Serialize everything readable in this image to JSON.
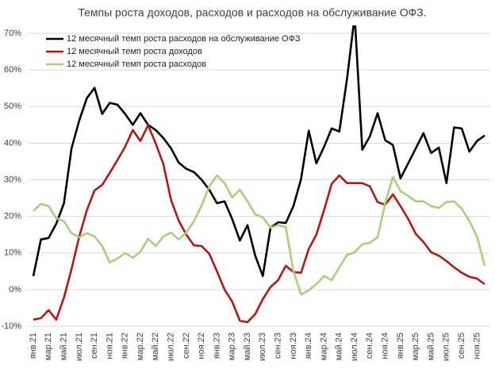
{
  "chart_data": {
    "type": "line",
    "title": "Темпы роста доходов, расходов и расходов на обслуживание ОФЗ.",
    "categories": [
      "янв.21",
      null,
      "мар.21",
      null,
      "май.21",
      null,
      "июл.21",
      null,
      "сен.21",
      null,
      "ноя.21",
      null,
      "янв.22",
      null,
      "мар.22",
      null,
      "май.22",
      null,
      "июл.22",
      null,
      "сен.22",
      null,
      "ноя.22",
      null,
      "янв.23",
      null,
      "мар.23",
      null,
      "май.23",
      null,
      "июл.23",
      null,
      "сен.23",
      null,
      "ноя.23",
      null,
      "янв.24",
      null,
      "мар.24",
      null,
      "май.24",
      null,
      "июл.24",
      null,
      "сен.24",
      null,
      "ноя.24",
      null,
      "янв.25",
      null,
      "мар.25",
      null,
      "май.25",
      null,
      "июл.25",
      null,
      "сен.25",
      null,
      "ноя.25",
      null
    ],
    "series": [
      {
        "name": "12 месячный темп роста расходов на обслуживание ОФЗ",
        "color": "#000000",
        "values": [
          3.7,
          13.7,
          14.1,
          18,
          23.6,
          38.6,
          46.2,
          52.3,
          55.1,
          48,
          51,
          50.5,
          48,
          45,
          48.2,
          45,
          43.6,
          41.4,
          38.6,
          34.7,
          33,
          32.1,
          30,
          27.3,
          23.6,
          24.1,
          19.3,
          13.4,
          17.6,
          9.3,
          3.7,
          16.9,
          18.4,
          18.2,
          22.8,
          30.2,
          43.4,
          34.5,
          39,
          44,
          43.2,
          57.5,
          74.8,
          38.2,
          41.9,
          48.2,
          40.8,
          39.5,
          30.4,
          34.5,
          38.6,
          42.7,
          37.3,
          38.8,
          29.1,
          44.3,
          44,
          37.7,
          40.6,
          42.1
        ]
      },
      {
        "name": "12 месячный темп роста доходов",
        "color": "#b01818",
        "values": [
          -8.2,
          -7.8,
          -5.6,
          -8.2,
          -2.2,
          5.6,
          14.5,
          21.7,
          27.1,
          28.6,
          31.9,
          35.4,
          39,
          43.6,
          40.6,
          44.9,
          39.9,
          34.3,
          24.5,
          18.9,
          15,
          12.1,
          11.9,
          9.8,
          5,
          0,
          -3.3,
          -8.5,
          -8.9,
          -6.7,
          -2.6,
          0.7,
          2.6,
          6.5,
          4.8,
          4.6,
          11.1,
          15,
          21.7,
          28.9,
          31.2,
          29.1,
          29.1,
          29.1,
          28.2,
          23.9,
          23.2,
          26,
          22.8,
          19.3,
          15.2,
          13,
          10.2,
          9.3,
          7.8,
          6.1,
          4.6,
          3.5,
          3,
          1.5
        ]
      },
      {
        "name": "12 месячный темп роста расходов",
        "color": "#a9cf7c",
        "values": [
          21.5,
          23.4,
          22.8,
          19.5,
          18.7,
          15.4,
          14.3,
          15.4,
          14.5,
          11.9,
          7.4,
          8.5,
          10,
          8.7,
          10.4,
          13.9,
          11.9,
          14.5,
          15.6,
          13.7,
          15.6,
          18.7,
          23,
          28.2,
          31.2,
          29.1,
          25.2,
          27.3,
          24.1,
          20.6,
          19.7,
          16.9,
          17.6,
          17.1,
          5,
          -1.3,
          -0.2,
          1.5,
          3.7,
          2.6,
          6.1,
          9.5,
          10.2,
          12.4,
          12.8,
          14.3,
          23.6,
          30.8,
          26.9,
          25.6,
          24.1,
          24.1,
          22.8,
          22.3,
          23.9,
          24.1,
          22.1,
          18.7,
          14.5,
          6.5
        ]
      }
    ],
    "ylim": [
      -10,
      70
    ],
    "yticks": [
      {
        "value": -10,
        "label": "-10%"
      },
      {
        "value": 0,
        "label": "0%"
      },
      {
        "value": 10,
        "label": "10%"
      },
      {
        "value": 20,
        "label": "20%"
      },
      {
        "value": 30,
        "label": "30%"
      },
      {
        "value": 40,
        "label": "40%"
      },
      {
        "value": 50,
        "label": "50%"
      },
      {
        "value": 60,
        "label": "60%"
      },
      {
        "value": 70,
        "label": "70%"
      }
    ],
    "grid": true,
    "legend": "upper-left"
  }
}
